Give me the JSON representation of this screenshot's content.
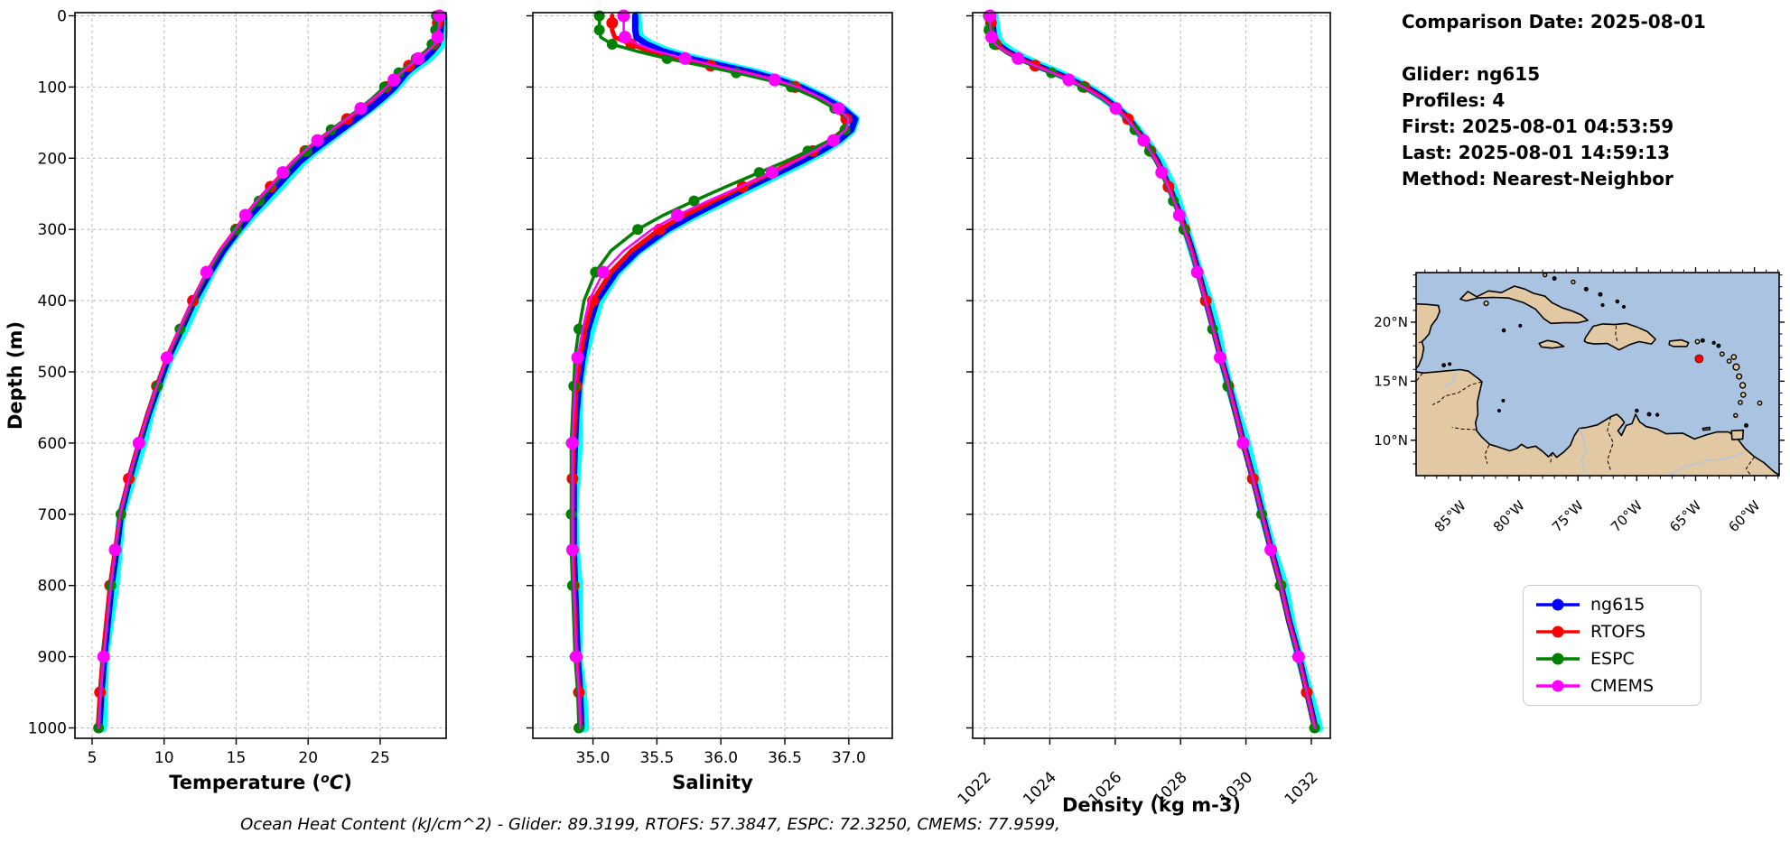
{
  "info_panel": {
    "title": "Comparison Date: 2025-08-01",
    "lines": [
      "Glider: ng615",
      "Profiles: 4",
      "First: 2025-08-01 04:53:59",
      "Last: 2025-08-01 14:59:13",
      "Method: Nearest-Neighbor"
    ]
  },
  "footer": {
    "ohc_text": "Ocean Heat Content (kJ/cm^2) - Glider: 89.3199,  RTOFS: 57.3847,  ESPC: 72.3250,  CMEMS: 77.9599,",
    "ohc_values": {
      "glider": "89.3199",
      "rtofs": "57.3847",
      "espc": "72.3250",
      "cmems": "77.9599"
    }
  },
  "legend": {
    "entries": [
      {
        "label": "ng615",
        "color": "#0000ff"
      },
      {
        "label": "RTOFS",
        "color": "#ff0000"
      },
      {
        "label": "ESPC",
        "color": "#008000"
      },
      {
        "label": "CMEMS",
        "color": "#ff00ff"
      }
    ]
  },
  "colors": {
    "raw_halo": "#00ffff",
    "grid": "#bbbbbb",
    "spine": "#000000"
  },
  "map": {
    "lat_tick_labels": [
      "20°N",
      "15°N",
      "10°N"
    ],
    "lat_tick_values": [
      20,
      15,
      10
    ],
    "lon_tick_labels": [
      "85°W",
      "80°W",
      "75°W",
      "70°W",
      "65°W",
      "60°W"
    ],
    "lon_tick_values": [
      -85,
      -80,
      -75,
      -70,
      -65,
      -60
    ],
    "extent": {
      "west": -88.75,
      "east": -57.9,
      "south": 7.0,
      "north": 24.2
    },
    "ocean_color": "#a9c3e1",
    "land_color": "#e3c9a3",
    "glider_marker": {
      "lon": -64.7,
      "lat": 16.9,
      "color": "#ff0000"
    }
  },
  "chart_data": {
    "type": "line",
    "orientation": "vertical-profile",
    "ylabel": "Depth (m)",
    "ylim": [
      -5,
      1015
    ],
    "grid": true,
    "depth_ticks": [
      0,
      100,
      200,
      300,
      400,
      500,
      600,
      700,
      800,
      900,
      1000
    ],
    "depth_tick_labels": [
      "0",
      "100",
      "200",
      "300",
      "400",
      "500",
      "600",
      "700",
      "800",
      "900",
      "1000"
    ],
    "depths": [
      0,
      10,
      20,
      30,
      40,
      50,
      60,
      70,
      80,
      90,
      100,
      115,
      130,
      145,
      160,
      175,
      190,
      205,
      220,
      240,
      260,
      280,
      300,
      330,
      360,
      400,
      440,
      480,
      520,
      560,
      600,
      650,
      700,
      750,
      800,
      850,
      900,
      950,
      1000
    ],
    "series_names": [
      "ng615",
      "RTOFS",
      "ESPC",
      "CMEMS"
    ],
    "panels": [
      {
        "name": "temperature",
        "xlabel": "Temperature (°C)",
        "degree_superscript": true,
        "xlim": [
          3.81,
          29.58
        ],
        "xticks": [
          5,
          10,
          15,
          20,
          25
        ],
        "xtick_labels": [
          "5",
          "10",
          "15",
          "20",
          "25"
        ],
        "series": {
          "ng615": [
            29.25,
            29.25,
            29.2,
            29.15,
            29.0,
            28.6,
            28.1,
            27.4,
            26.8,
            26.4,
            26.0,
            25.2,
            24.3,
            23.3,
            22.3,
            21.3,
            20.3,
            19.4,
            18.7,
            17.8,
            16.9,
            16.0,
            15.2,
            14.1,
            13.2,
            12.1,
            11.2,
            10.3,
            9.6,
            8.9,
            8.3,
            7.6,
            7.0,
            6.7,
            6.35,
            6.1,
            5.85,
            5.65,
            5.5
          ],
          "RTOFS": [
            29.0,
            29.0,
            28.95,
            28.9,
            28.7,
            28.2,
            27.6,
            27.0,
            26.4,
            25.9,
            25.4,
            24.6,
            23.7,
            22.7,
            21.7,
            20.7,
            19.8,
            19.0,
            18.3,
            17.4,
            16.5,
            15.7,
            15.0,
            13.9,
            13.0,
            12.0,
            11.1,
            10.2,
            9.5,
            8.85,
            8.25,
            7.55,
            6.95,
            6.6,
            6.25,
            6.0,
            5.75,
            5.55,
            5.4
          ],
          "ESPC": [
            28.9,
            28.9,
            28.85,
            28.8,
            28.6,
            28.15,
            27.5,
            26.9,
            26.3,
            25.8,
            25.3,
            24.5,
            23.6,
            22.6,
            21.6,
            20.7,
            19.9,
            19.1,
            18.4,
            17.5,
            16.6,
            15.8,
            15.0,
            13.95,
            13.05,
            12.0,
            11.1,
            10.25,
            9.55,
            8.9,
            8.3,
            7.6,
            7.0,
            6.65,
            6.3,
            6.05,
            5.8,
            5.6,
            5.45
          ],
          "CMEMS": [
            29.1,
            29.1,
            29.05,
            29.0,
            28.8,
            28.3,
            27.65,
            27.0,
            26.45,
            25.95,
            25.45,
            24.6,
            23.65,
            22.65,
            21.65,
            20.65,
            19.75,
            18.95,
            18.25,
            17.35,
            16.45,
            15.65,
            14.95,
            13.85,
            12.95,
            11.95,
            11.05,
            10.2,
            9.5,
            8.85,
            8.25,
            7.55,
            6.95,
            6.6,
            6.3,
            6.05,
            5.8,
            5.6,
            5.45
          ]
        }
      },
      {
        "name": "salinity",
        "xlabel": "Salinity",
        "degree_superscript": false,
        "xlim": [
          34.53,
          37.34
        ],
        "xticks": [
          35.0,
          35.5,
          36.0,
          36.5,
          37.0
        ],
        "xtick_labels": [
          "35.0",
          "35.5",
          "36.0",
          "36.5",
          "37.0"
        ],
        "series": {
          "ng615": [
            35.33,
            35.33,
            35.33,
            35.34,
            35.42,
            35.55,
            35.75,
            36.0,
            36.25,
            36.45,
            36.62,
            36.8,
            36.95,
            37.05,
            37.02,
            36.92,
            36.78,
            36.62,
            36.45,
            36.22,
            36.0,
            35.78,
            35.58,
            35.35,
            35.18,
            35.03,
            34.96,
            34.92,
            34.89,
            34.87,
            34.86,
            34.85,
            34.85,
            34.85,
            34.86,
            34.87,
            34.88,
            34.9,
            34.91
          ],
          "RTOFS": [
            35.15,
            35.15,
            35.15,
            35.17,
            35.3,
            35.45,
            35.68,
            35.92,
            36.18,
            36.4,
            36.58,
            36.76,
            36.9,
            36.98,
            36.96,
            36.86,
            36.72,
            36.56,
            36.4,
            36.17,
            35.94,
            35.72,
            35.52,
            35.3,
            35.14,
            35.0,
            34.94,
            34.9,
            34.87,
            34.86,
            34.85,
            34.84,
            34.84,
            34.84,
            34.85,
            34.86,
            34.87,
            34.89,
            34.9
          ],
          "ESPC": [
            35.05,
            35.05,
            35.05,
            35.06,
            35.15,
            35.35,
            35.58,
            35.85,
            36.12,
            36.36,
            36.55,
            36.74,
            36.89,
            37.0,
            36.97,
            36.85,
            36.68,
            36.5,
            36.3,
            36.04,
            35.79,
            35.55,
            35.35,
            35.14,
            35.02,
            34.93,
            34.89,
            34.86,
            34.85,
            34.84,
            34.83,
            34.83,
            34.83,
            34.83,
            34.84,
            34.85,
            34.86,
            34.88,
            34.89
          ],
          "CMEMS": [
            35.24,
            35.24,
            35.24,
            35.25,
            35.35,
            35.5,
            35.72,
            35.95,
            36.2,
            36.42,
            36.6,
            36.78,
            36.92,
            37.0,
            36.98,
            36.88,
            36.73,
            36.57,
            36.4,
            36.15,
            35.9,
            35.66,
            35.46,
            35.24,
            35.08,
            34.97,
            34.92,
            34.88,
            34.86,
            34.85,
            34.84,
            34.84,
            34.84,
            34.84,
            34.85,
            34.86,
            34.87,
            34.89,
            34.9
          ]
        }
      },
      {
        "name": "density",
        "xlabel": "Density (kg m-3)",
        "degree_superscript": false,
        "rotate_tick_labels": 45,
        "xlim": [
          1021.64,
          1032.58
        ],
        "xticks": [
          1022,
          1024,
          1026,
          1028,
          1030,
          1032
        ],
        "xtick_labels": [
          "1022",
          "1024",
          "1026",
          "1028",
          "1030",
          "1032"
        ],
        "series": {
          "ng615": [
            1022.25,
            1022.25,
            1022.27,
            1022.3,
            1022.4,
            1022.7,
            1023.1,
            1023.6,
            1024.15,
            1024.65,
            1025.1,
            1025.63,
            1026.07,
            1026.42,
            1026.66,
            1026.9,
            1027.1,
            1027.3,
            1027.45,
            1027.65,
            1027.82,
            1027.99,
            1028.14,
            1028.36,
            1028.54,
            1028.78,
            1029.01,
            1029.23,
            1029.48,
            1029.7,
            1029.92,
            1030.22,
            1030.5,
            1030.77,
            1031.07,
            1031.32,
            1031.62,
            1031.87,
            1032.12
          ],
          "RTOFS": [
            1022.2,
            1022.2,
            1022.22,
            1022.25,
            1022.35,
            1022.65,
            1023.05,
            1023.55,
            1024.1,
            1024.6,
            1025.05,
            1025.6,
            1026.04,
            1026.39,
            1026.64,
            1026.88,
            1027.08,
            1027.28,
            1027.43,
            1027.63,
            1027.8,
            1027.97,
            1028.12,
            1028.34,
            1028.52,
            1028.77,
            1029.0,
            1029.22,
            1029.46,
            1029.69,
            1029.91,
            1030.21,
            1030.49,
            1030.76,
            1031.06,
            1031.31,
            1031.61,
            1031.86,
            1032.11
          ],
          "ESPC": [
            1022.12,
            1022.12,
            1022.14,
            1022.18,
            1022.3,
            1022.62,
            1023.0,
            1023.52,
            1024.05,
            1024.55,
            1025.0,
            1025.55,
            1026.0,
            1026.35,
            1026.6,
            1026.85,
            1027.05,
            1027.25,
            1027.4,
            1027.6,
            1027.78,
            1027.95,
            1028.1,
            1028.32,
            1028.5,
            1028.75,
            1028.98,
            1029.2,
            1029.45,
            1029.68,
            1029.9,
            1030.2,
            1030.48,
            1030.75,
            1031.05,
            1031.3,
            1031.6,
            1031.85,
            1032.1
          ],
          "CMEMS": [
            1022.17,
            1022.17,
            1022.19,
            1022.22,
            1022.33,
            1022.64,
            1023.03,
            1023.54,
            1024.08,
            1024.58,
            1025.03,
            1025.58,
            1026.02,
            1026.37,
            1026.62,
            1026.87,
            1027.07,
            1027.27,
            1027.42,
            1027.62,
            1027.8,
            1027.96,
            1028.11,
            1028.33,
            1028.51,
            1028.76,
            1028.99,
            1029.21,
            1029.47,
            1029.69,
            1029.91,
            1030.21,
            1030.49,
            1030.76,
            1031.06,
            1031.31,
            1031.61,
            1031.86,
            1032.11
          ]
        }
      }
    ]
  }
}
